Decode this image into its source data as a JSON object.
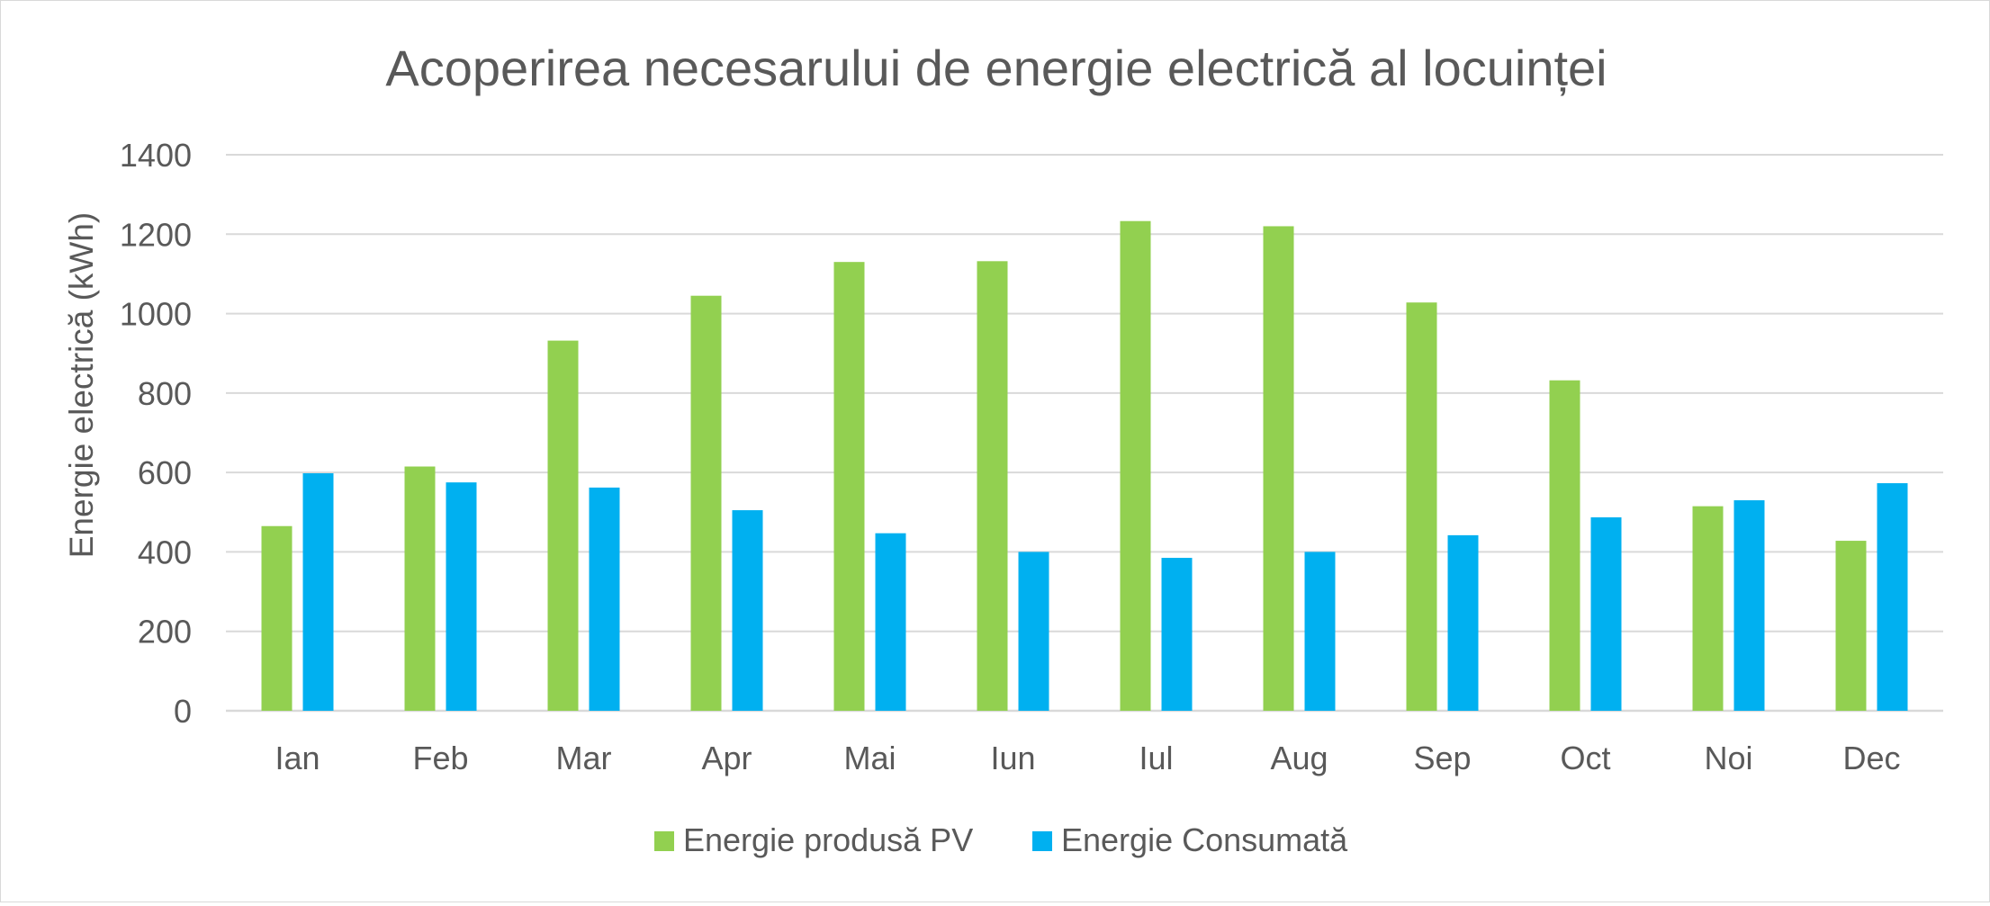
{
  "chart_data": {
    "type": "bar",
    "title": "Acoperirea necesarului de energie electrică al locuinței",
    "xlabel": "",
    "ylabel": "Energie electrică (kWh)",
    "ylim": [
      0,
      1400
    ],
    "yticks": [
      0,
      200,
      400,
      600,
      800,
      1000,
      1200,
      1400
    ],
    "grid": true,
    "legend_position": "bottom",
    "categories": [
      "Ian",
      "Feb",
      "Mar",
      "Apr",
      "Mai",
      "Iun",
      "Iul",
      "Aug",
      "Sep",
      "Oct",
      "Noi",
      "Dec"
    ],
    "series": [
      {
        "name": "Energie produsă PV",
        "color": "#92d050",
        "values": [
          465,
          615,
          932,
          1045,
          1130,
          1132,
          1233,
          1220,
          1028,
          832,
          515,
          428
        ]
      },
      {
        "name": "Energie Consumată",
        "color": "#00b0f0",
        "values": [
          598,
          575,
          562,
          505,
          447,
          400,
          385,
          400,
          442,
          487,
          530,
          573
        ]
      }
    ]
  }
}
